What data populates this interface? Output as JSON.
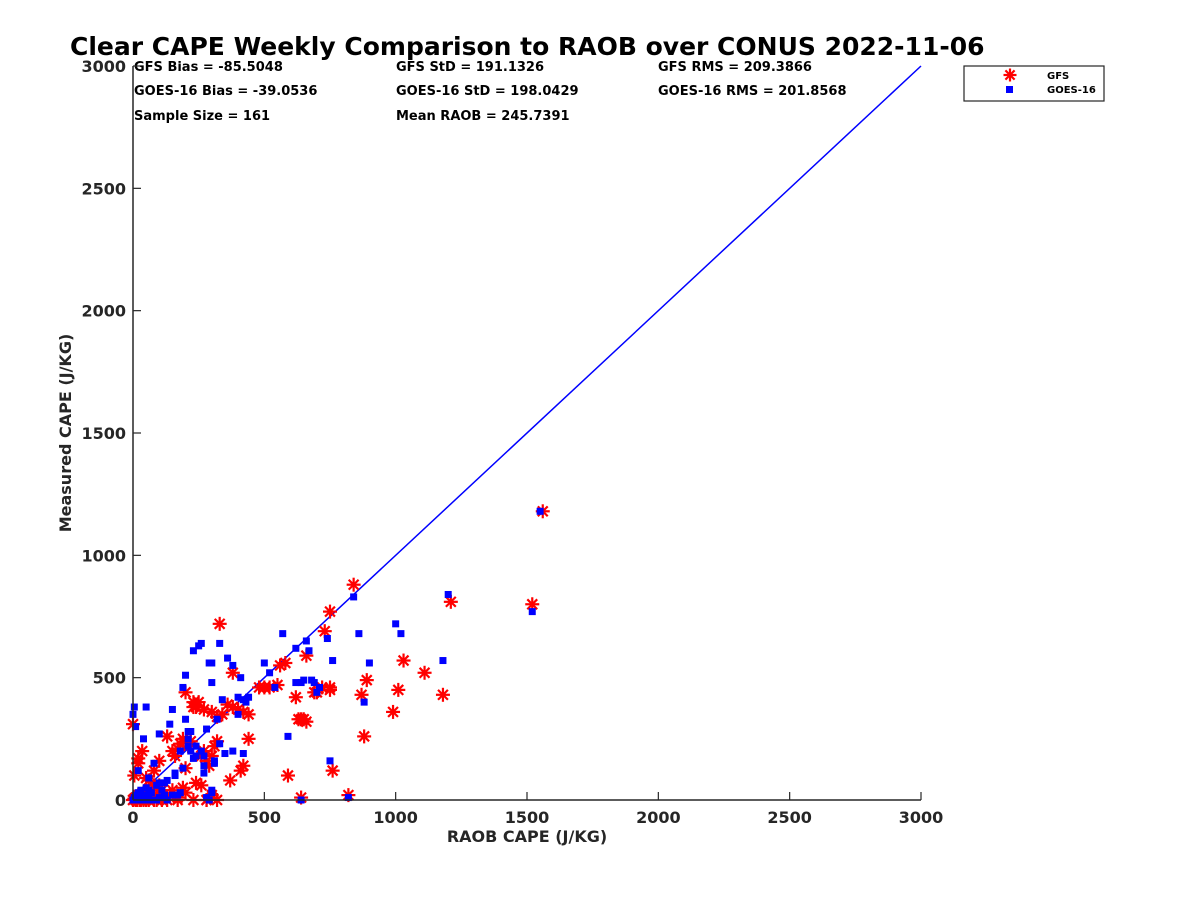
{
  "chart_data": {
    "type": "scatter",
    "title": "Clear CAPE Weekly Comparison to RAOB over CONUS 2022-11-06",
    "xlabel": "RAOB CAPE (J/KG)",
    "ylabel": "Measured CAPE (J/KG)",
    "xlim": [
      0,
      3000
    ],
    "ylim": [
      0,
      3000
    ],
    "xticks": [
      "0",
      "500",
      "1000",
      "1500",
      "2000",
      "2500",
      "3000"
    ],
    "yticks": [
      "0",
      "500",
      "1000",
      "1500",
      "2000",
      "2500",
      "3000"
    ],
    "grid": false,
    "legend_position": "top-right",
    "stats": [
      "GFS Bias = -85.5048",
      "GFS StD = 191.1326",
      "GFS RMS = 209.3866",
      "GOES-16 Bias = -39.0536",
      "GOES-16 StD = 198.0429",
      "GOES-16 RMS = 201.8568",
      "Sample Size = 161",
      "Mean RAOB = 245.7391"
    ],
    "reference_line": {
      "from": [
        0,
        0
      ],
      "to": [
        3000,
        3000
      ],
      "color": "#0000ff"
    },
    "series": [
      {
        "name": "GFS",
        "marker": "asterisk",
        "color": "#ff0000",
        "x": [
          0,
          5,
          10,
          15,
          20,
          30,
          40,
          50,
          60,
          70,
          80,
          90,
          100,
          110,
          120,
          5,
          20,
          35,
          60,
          80,
          100,
          130,
          150,
          160,
          170,
          180,
          190,
          200,
          210,
          220,
          230,
          240,
          250,
          260,
          270,
          280,
          290,
          300,
          310,
          320,
          0,
          20,
          50,
          80,
          110,
          140,
          170,
          200,
          230,
          260,
          300,
          330,
          360,
          380,
          400,
          420,
          440,
          200,
          230,
          270,
          300,
          320,
          340,
          380,
          410,
          440,
          480,
          520,
          560,
          580,
          620,
          640,
          660,
          690,
          730,
          750,
          760,
          840,
          870,
          890,
          880,
          990,
          1010,
          1030,
          1110,
          1180,
          1210,
          1520,
          1560,
          820,
          640,
          590,
          750,
          280,
          170,
          130,
          90,
          60,
          40,
          25,
          10,
          150,
          280,
          320,
          370,
          420,
          240,
          300,
          100,
          190,
          650,
          660,
          630,
          720,
          700,
          750,
          500,
          550
        ],
        "y": [
          0,
          5,
          10,
          0,
          20,
          0,
          30,
          0,
          10,
          40,
          0,
          20,
          60,
          0,
          10,
          100,
          150,
          200,
          80,
          120,
          160,
          260,
          200,
          180,
          210,
          230,
          250,
          130,
          220,
          240,
          400,
          380,
          400,
          180,
          200,
          160,
          140,
          180,
          220,
          240,
          310,
          170,
          90,
          60,
          40,
          20,
          10,
          30,
          0,
          60,
          20,
          720,
          390,
          520,
          370,
          360,
          350,
          440,
          380,
          370,
          360,
          340,
          350,
          380,
          120,
          250,
          460,
          460,
          550,
          560,
          420,
          330,
          590,
          440,
          690,
          770,
          120,
          880,
          430,
          490,
          260,
          360,
          450,
          570,
          520,
          430,
          810,
          800,
          1180,
          20,
          10,
          100,
          460,
          0,
          0,
          0,
          0,
          0,
          0,
          0,
          0,
          40,
          0,
          0,
          80,
          140,
          70,
          10,
          30,
          50,
          330,
          320,
          330,
          460,
          440,
          450,
          460,
          470
        ]
      },
      {
        "name": "GOES-16",
        "marker": "square",
        "color": "#0000ff",
        "x": [
          0,
          5,
          10,
          15,
          20,
          25,
          30,
          35,
          40,
          45,
          50,
          55,
          60,
          70,
          80,
          90,
          100,
          110,
          120,
          130,
          0,
          5,
          10,
          20,
          40,
          50,
          60,
          80,
          100,
          120,
          140,
          150,
          160,
          170,
          180,
          190,
          200,
          210,
          220,
          230,
          240,
          250,
          260,
          270,
          280,
          290,
          300,
          310,
          320,
          330,
          340,
          360,
          380,
          400,
          410,
          420,
          430,
          440,
          500,
          520,
          540,
          570,
          590,
          620,
          640,
          660,
          680,
          700,
          740,
          760,
          840,
          860,
          900,
          1000,
          1020,
          1180,
          1200,
          1520,
          1550,
          820,
          640,
          750,
          880,
          300,
          280,
          290,
          180,
          150,
          120,
          90,
          70,
          50,
          30,
          15,
          200,
          220,
          260,
          310,
          350,
          400,
          210,
          240,
          270,
          650,
          670,
          690,
          710,
          620,
          300,
          330,
          380,
          420,
          60,
          100,
          130,
          160,
          190,
          230,
          270,
          300,
          210
        ],
        "y": [
          0,
          10,
          20,
          5,
          30,
          0,
          40,
          15,
          10,
          0,
          50,
          20,
          5,
          30,
          0,
          60,
          10,
          40,
          20,
          0,
          350,
          380,
          300,
          120,
          250,
          380,
          90,
          150,
          270,
          70,
          310,
          370,
          110,
          20,
          200,
          460,
          510,
          250,
          280,
          610,
          220,
          630,
          640,
          180,
          290,
          560,
          480,
          150,
          330,
          640,
          410,
          580,
          550,
          420,
          500,
          410,
          400,
          420,
          560,
          520,
          460,
          680,
          260,
          620,
          480,
          650,
          490,
          440,
          660,
          570,
          830,
          680,
          560,
          720,
          680,
          570,
          840,
          770,
          1180,
          10,
          0,
          160,
          400,
          40,
          10,
          0,
          30,
          20,
          10,
          0,
          0,
          0,
          0,
          0,
          330,
          200,
          200,
          160,
          190,
          350,
          280,
          180,
          140,
          490,
          610,
          480,
          460,
          480,
          560,
          230,
          200,
          190,
          40,
          70,
          80,
          100,
          130,
          170,
          110,
          30,
          220
        ]
      }
    ]
  }
}
